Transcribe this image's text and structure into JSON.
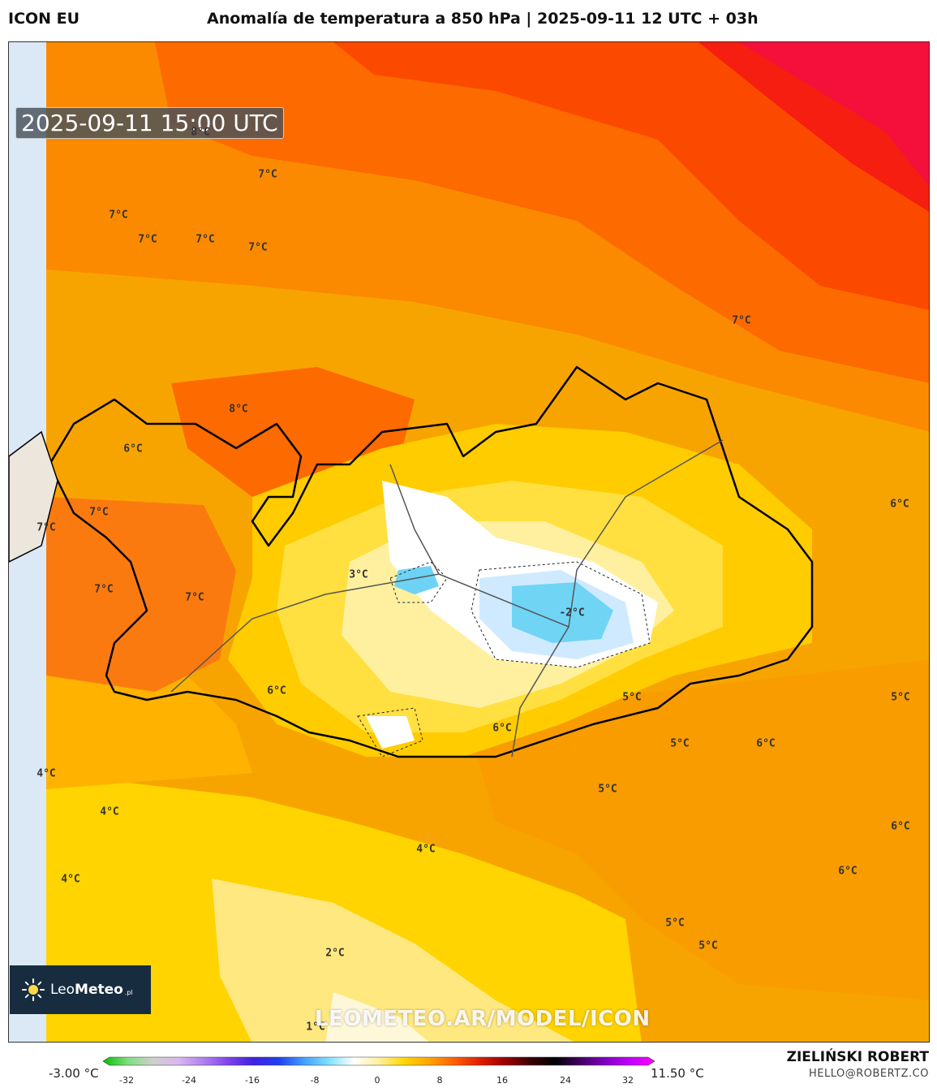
{
  "header": {
    "model": "ICON EU",
    "title": "Anomalía de temperatura a 850 hPa | 2025-09-11 12 UTC + 03h"
  },
  "map": {
    "timestamp": "2025-09-11 15:00 UTC",
    "watermark": "LEOMETEO.AR/MODEL/ICON",
    "labels": [
      {
        "text": "8°C"
      },
      {
        "text": "7°C"
      },
      {
        "text": "7°C"
      },
      {
        "text": "7°C"
      },
      {
        "text": "7°C"
      },
      {
        "text": "7°C"
      },
      {
        "text": "7°C"
      },
      {
        "text": "8°C"
      },
      {
        "text": "6°C"
      },
      {
        "text": "7°C"
      },
      {
        "text": "7°C"
      },
      {
        "text": "7°C"
      },
      {
        "text": "7°C"
      },
      {
        "text": "3°C"
      },
      {
        "text": "-2°C"
      },
      {
        "text": "6°C"
      },
      {
        "text": "6°C"
      },
      {
        "text": "5°C"
      },
      {
        "text": "5°C"
      },
      {
        "text": "5°C"
      },
      {
        "text": "6°C"
      },
      {
        "text": "5°C"
      },
      {
        "text": "6°C"
      },
      {
        "text": "4°C"
      },
      {
        "text": "4°C"
      },
      {
        "text": "4°C"
      },
      {
        "text": "4°C"
      },
      {
        "text": "6°C"
      },
      {
        "text": "5°C"
      },
      {
        "text": "5°C"
      },
      {
        "text": "2°C"
      },
      {
        "text": "1°C"
      }
    ]
  },
  "logo": {
    "name_light": "Leo",
    "name_bold": "Meteo",
    "suffix": ".pl"
  },
  "colorbar": {
    "min_label": "-3.00 °C",
    "max_label": "11.50 °C",
    "ticks": [
      "-32",
      "-24",
      "-16",
      "-8",
      "0",
      "8",
      "16",
      "24",
      "32"
    ],
    "colors": [
      "#00c000",
      "#7fdf7f",
      "#d0d0d0",
      "#d8b8f0",
      "#b080f0",
      "#8040f0",
      "#4020e0",
      "#2040f0",
      "#40a0ff",
      "#80e0ff",
      "#ffffff",
      "#fff0a0",
      "#ffd700",
      "#ffa500",
      "#ff6000",
      "#e02000",
      "#a00000",
      "#400000",
      "#000000",
      "#400060",
      "#8000c0",
      "#c000ff",
      "#ff00ff"
    ]
  },
  "footer": {
    "author": "ZIELIŃSKI ROBERT",
    "email": "HELLO@ROBERTZ.CO"
  }
}
